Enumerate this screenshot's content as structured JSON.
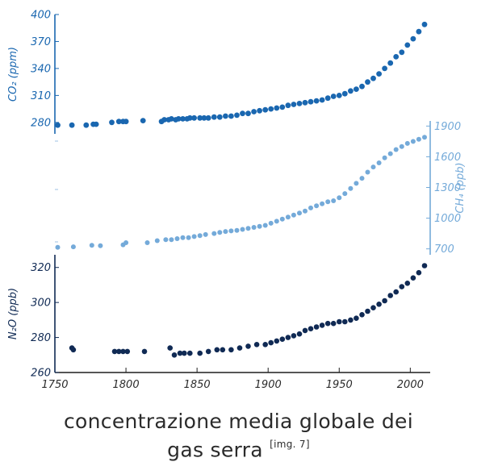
{
  "colors": {
    "co2": "#1a67b0",
    "ch4": "#74aad9",
    "n2o": "#102a54",
    "axis": "#1f1f1f"
  },
  "caption": {
    "line1": "concentrazione media globale dei",
    "line2": "gas serra",
    "ref": "[img. 7]"
  },
  "chart_data": {
    "type": "scatter",
    "x_range": [
      1750,
      2014
    ],
    "x_ticks": [
      1750,
      1800,
      1850,
      1900,
      1950,
      2000
    ],
    "series": [
      {
        "name": "CO2",
        "axis_label": "CO₂ (ppm)",
        "axis_side": "left",
        "color": "#1a67b0",
        "y_range": [
          270,
          400
        ],
        "y_ticks": [
          280,
          310,
          340,
          370,
          400
        ],
        "x": [
          1752,
          1762,
          1772,
          1777,
          1779,
          1790,
          1795,
          1798,
          1800,
          1812,
          1825,
          1827,
          1830,
          1832,
          1835,
          1837,
          1840,
          1843,
          1845,
          1848,
          1852,
          1855,
          1858,
          1862,
          1866,
          1870,
          1874,
          1878,
          1882,
          1886,
          1890,
          1894,
          1898,
          1902,
          1906,
          1910,
          1914,
          1918,
          1922,
          1926,
          1930,
          1934,
          1938,
          1942,
          1946,
          1950,
          1954,
          1958,
          1962,
          1966,
          1970,
          1974,
          1978,
          1982,
          1986,
          1990,
          1994,
          1998,
          2002,
          2006,
          2010
        ],
        "y": [
          277,
          277,
          277,
          278,
          278,
          280,
          281,
          281,
          281,
          282,
          281,
          283,
          283,
          284,
          283,
          284,
          284,
          284,
          285,
          285,
          285,
          285,
          285,
          286,
          286,
          287,
          287,
          288,
          290,
          290,
          292,
          293,
          294,
          295,
          296,
          297,
          299,
          300,
          301,
          302,
          303,
          304,
          305,
          307,
          309,
          310,
          312,
          315,
          317,
          320,
          325,
          329,
          334,
          340,
          346,
          353,
          358,
          366,
          373,
          381,
          389
        ]
      },
      {
        "name": "CH4",
        "axis_label": "CH₄ (ppb)",
        "axis_side": "right",
        "color": "#74aad9",
        "y_range": [
          650,
          1950
        ],
        "y_ticks": [
          700,
          1000,
          1300,
          1600,
          1900
        ],
        "x": [
          1752,
          1763,
          1776,
          1782,
          1798,
          1800,
          1815,
          1822,
          1828,
          1832,
          1836,
          1840,
          1844,
          1848,
          1852,
          1856,
          1862,
          1866,
          1870,
          1874,
          1878,
          1882,
          1886,
          1890,
          1894,
          1898,
          1902,
          1906,
          1910,
          1914,
          1918,
          1922,
          1926,
          1930,
          1934,
          1938,
          1942,
          1946,
          1950,
          1954,
          1958,
          1962,
          1966,
          1970,
          1974,
          1978,
          1982,
          1986,
          1990,
          1994,
          1998,
          2002,
          2006,
          2010
        ],
        "y": [
          715,
          720,
          735,
          730,
          740,
          760,
          760,
          780,
          790,
          790,
          800,
          810,
          810,
          820,
          830,
          840,
          850,
          860,
          870,
          875,
          880,
          890,
          900,
          910,
          920,
          930,
          950,
          970,
          990,
          1010,
          1030,
          1050,
          1070,
          1100,
          1120,
          1140,
          1160,
          1170,
          1200,
          1240,
          1290,
          1340,
          1390,
          1450,
          1500,
          1540,
          1590,
          1630,
          1670,
          1700,
          1730,
          1750,
          1770,
          1790
        ]
      },
      {
        "name": "N2O",
        "axis_label": "N₂O (ppb)",
        "axis_side": "left",
        "color": "#102a54",
        "y_range": [
          260,
          330
        ],
        "y_ticks": [
          260,
          280,
          300,
          320
        ],
        "x": [
          1762,
          1763,
          1792,
          1795,
          1798,
          1801,
          1813,
          1831,
          1834,
          1838,
          1841,
          1845,
          1852,
          1858,
          1864,
          1868,
          1874,
          1880,
          1886,
          1892,
          1898,
          1902,
          1906,
          1910,
          1914,
          1918,
          1922,
          1926,
          1930,
          1934,
          1938,
          1942,
          1946,
          1950,
          1954,
          1958,
          1962,
          1966,
          1970,
          1974,
          1978,
          1982,
          1986,
          1990,
          1994,
          1998,
          2002,
          2006,
          2010
        ],
        "y": [
          274,
          273,
          272,
          272,
          272,
          272,
          272,
          274,
          270,
          271,
          271,
          271,
          271,
          272,
          273,
          273,
          273,
          274,
          275,
          276,
          276,
          277,
          278,
          279,
          280,
          281,
          282,
          284,
          285,
          286,
          287,
          288,
          288,
          289,
          289,
          290,
          291,
          293,
          295,
          297,
          299,
          301,
          304,
          306,
          309,
          311,
          314,
          317,
          321
        ]
      }
    ]
  }
}
